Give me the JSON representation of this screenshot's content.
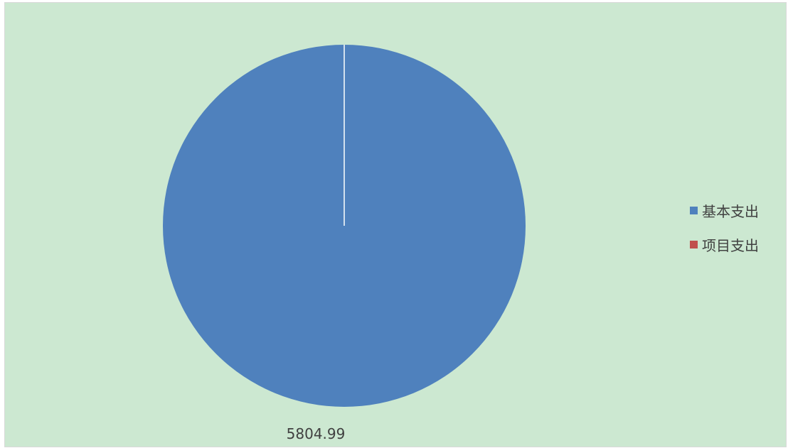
{
  "chart_data": {
    "type": "pie",
    "categories": [
      "基本支出",
      "项目支出"
    ],
    "values": [
      5804.99,
      0
    ],
    "colors": [
      "#4f81bd",
      "#c0504d"
    ],
    "data_labels": [
      "5804.99"
    ],
    "legend_position": "right",
    "background": "#cce8d1"
  }
}
